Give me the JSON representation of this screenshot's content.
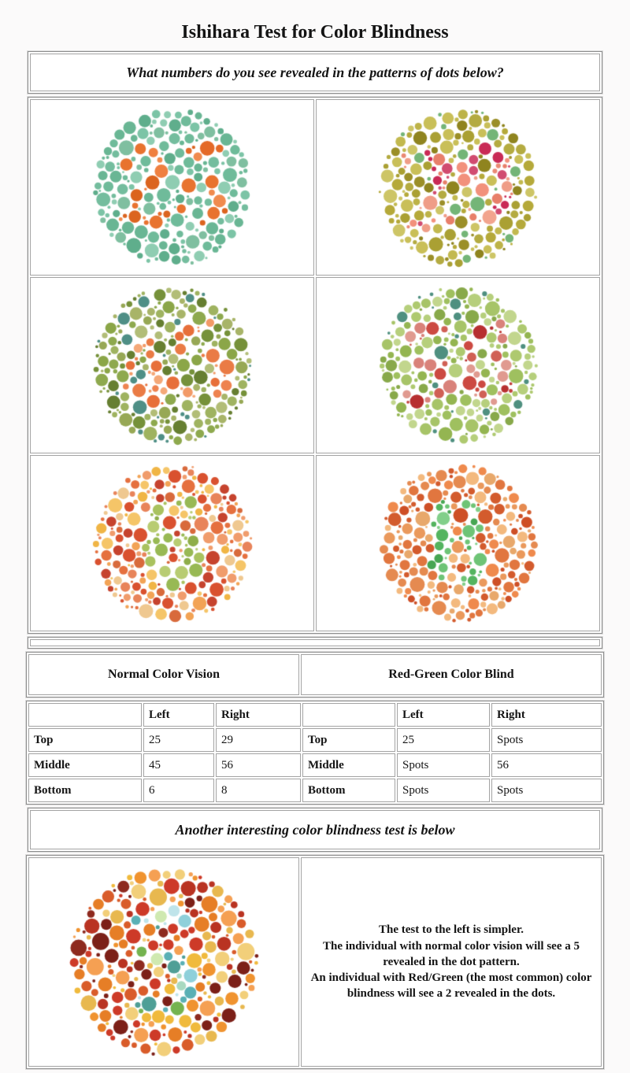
{
  "title": "Ishihara Test for Color Blindness",
  "question": "What numbers do you see revealed in the patterns of dots below?",
  "another_heading": "Another interesting color blindness test is below",
  "plates": [
    {
      "position": "top-left",
      "number": "25",
      "bg_colors": [
        "#6fbb9a",
        "#7cc4a6",
        "#5fae8c",
        "#8fcdb2",
        "#69b694",
        "#7fbfa0",
        "#74bd9e"
      ],
      "figure_colors": [
        "#e8732f",
        "#ef8040",
        "#db641f",
        "#f08b4e",
        "#e46a28"
      ]
    },
    {
      "position": "top-right",
      "number": "29",
      "bg_colors": [
        "#b5a93a",
        "#c2b94f",
        "#9b8f28",
        "#cdc566",
        "#aaa033",
        "#8f841f",
        "#c9bf58",
        "#b4ab41",
        "#74b577",
        "#bdb348"
      ],
      "figure_colors": [
        "#f2917c",
        "#ef9d87",
        "#e87f6a",
        "#d14c70",
        "#c92a56",
        "#f2a48e",
        "#ea8a74"
      ]
    },
    {
      "position": "middle-left",
      "number": "45",
      "bg_colors": [
        "#8ba648",
        "#9fb360",
        "#76913a",
        "#b2bd77",
        "#a8b468",
        "#667f31",
        "#4f8f86",
        "#97a855",
        "#8ea94e"
      ],
      "figure_colors": [
        "#f29a67",
        "#ee8350",
        "#e76f3a",
        "#f4a878",
        "#ea7b45"
      ]
    },
    {
      "position": "middle-right",
      "number": "56",
      "bg_colors": [
        "#a7c468",
        "#b6cf7c",
        "#94b551",
        "#c2d68d",
        "#88a94a",
        "#4f9080",
        "#9fc05f",
        "#aec96f"
      ],
      "figure_colors": [
        "#c23f3a",
        "#d06055",
        "#b72f30",
        "#d9827a",
        "#cc4a42",
        "#e09a90"
      ]
    },
    {
      "position": "bottom-left",
      "number": "6",
      "bg_colors": [
        "#e5703f",
        "#d9512f",
        "#f0b545",
        "#f09c6c",
        "#efc890",
        "#c6432e",
        "#f2a355",
        "#e8845a",
        "#d86a3c",
        "#f5c568"
      ],
      "figure_colors": [
        "#a9c25f",
        "#98b954",
        "#b8cc72",
        "#8fae4a"
      ]
    },
    {
      "position": "bottom-right",
      "number": "8",
      "bg_colors": [
        "#ea995c",
        "#e1763f",
        "#d35b2d",
        "#f3b97e",
        "#ce4f26",
        "#ef8a4d",
        "#e8a86b",
        "#e58a50"
      ],
      "figure_colors": [
        "#6ec476",
        "#54b45f",
        "#82cf8a",
        "#47a653"
      ]
    },
    {
      "position": "simple-test",
      "number": "5",
      "bg_colors": [
        "#cd3a28",
        "#e67e26",
        "#f0ba3c",
        "#8e2a1f",
        "#f5a053",
        "#7c2018",
        "#f2cf7a",
        "#d95c2a",
        "#b93322",
        "#f0932f",
        "#e8b84f"
      ],
      "figure_colors": [
        "#8fd0da",
        "#5ab0b5",
        "#74b34f",
        "#bfe4ea",
        "#4f9f96",
        "#a8d9c0",
        "#cfe9b0"
      ]
    }
  ],
  "results": {
    "section_titles": [
      "Normal Color Vision",
      "Red-Green Color Blind"
    ],
    "col_headers": [
      "",
      "Left",
      "Right",
      "",
      "Left",
      "Right"
    ],
    "rows": [
      [
        "Top",
        "25",
        "29",
        "Top",
        "25",
        "Spots"
      ],
      [
        "Middle",
        "45",
        "56",
        "Middle",
        "Spots",
        "56"
      ],
      [
        "Bottom",
        "6",
        "8",
        "Bottom",
        "Spots",
        "Spots"
      ]
    ]
  },
  "explanation": {
    "lines": [
      "The test to the left is simpler.",
      "The individual with normal color vision will see a 5 revealed in the dot pattern.",
      "An individual with Red/Green (the most common) color blindness will see a 2 revealed in the dots."
    ]
  }
}
